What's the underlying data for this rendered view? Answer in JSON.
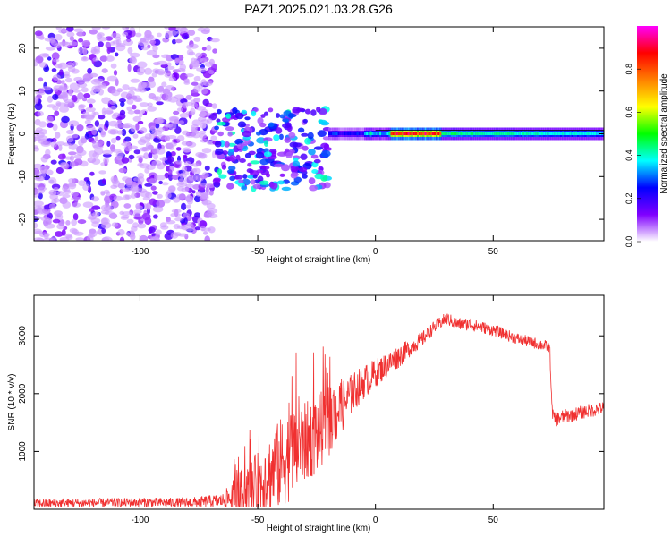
{
  "page_title": "PAZ1.2025.021.03.28.G26",
  "chart_data": [
    {
      "type": "heatmap",
      "title": "PAZ1.2025.021.03.28.G26",
      "xlabel": "Height of straight line (km)",
      "ylabel": "Frequency (Hz)",
      "xlim": [
        -145,
        97
      ],
      "ylim": [
        -25,
        25
      ],
      "xticks": [
        -100,
        -50,
        0,
        50
      ],
      "yticks": [
        -20,
        -10,
        0,
        10,
        20
      ],
      "colorbar": {
        "label": "Normalized spectral amplitude",
        "range": [
          0,
          1
        ],
        "ticks": [
          "0.0",
          "0.2",
          "0.4",
          "0.6",
          "0.8"
        ],
        "colors": [
          "#ffffff",
          "#8000ff",
          "#0000ff",
          "#00ffff",
          "#00ff00",
          "#ffff00",
          "#ff8000",
          "#ff0000",
          "#ff00ff"
        ]
      },
      "features": {
        "noise_region": [
          -145,
          -68
        ],
        "transition_region": [
          -68,
          -20
        ],
        "ridge_start": -20,
        "ridge_frequency": 0,
        "ridge_peak_x": [
          6,
          28
        ]
      }
    },
    {
      "type": "line",
      "xlabel": "Height of straight line (km)",
      "ylabel": "SNR (10 * v/v)",
      "xlim": [
        -145,
        97
      ],
      "ylim": [
        0,
        3700
      ],
      "xticks": [
        -100,
        -50,
        0,
        50
      ],
      "yticks": [
        1000,
        2000,
        3000
      ],
      "series": [
        {
          "name": "SNR",
          "color": "#f03030",
          "x": [
            -145,
            -120,
            -100,
            -80,
            -65,
            -58,
            -50,
            -45,
            -40,
            -35,
            -30,
            -25,
            -20,
            -15,
            -10,
            -5,
            0,
            5,
            10,
            15,
            20,
            25,
            30,
            35,
            40,
            50,
            60,
            70,
            74,
            75,
            76,
            80,
            85,
            90,
            97
          ],
          "values": [
            100,
            110,
            120,
            110,
            150,
            250,
            400,
            600,
            800,
            1000,
            1150,
            1300,
            1500,
            1750,
            2000,
            2200,
            2350,
            2500,
            2650,
            2800,
            2950,
            3150,
            3300,
            3200,
            3200,
            3100,
            2950,
            2850,
            2800,
            1700,
            1550,
            1600,
            1650,
            1700,
            1750
          ],
          "noise_amplitude": [
            80,
            80,
            80,
            90,
            120,
            400,
            600,
            700,
            800,
            800,
            700,
            700,
            600,
            500,
            350,
            300,
            250,
            220,
            200,
            150,
            130,
            110,
            110,
            110,
            110,
            100,
            100,
            100,
            100,
            110,
            130,
            130,
            120,
            120,
            120
          ]
        }
      ]
    }
  ]
}
